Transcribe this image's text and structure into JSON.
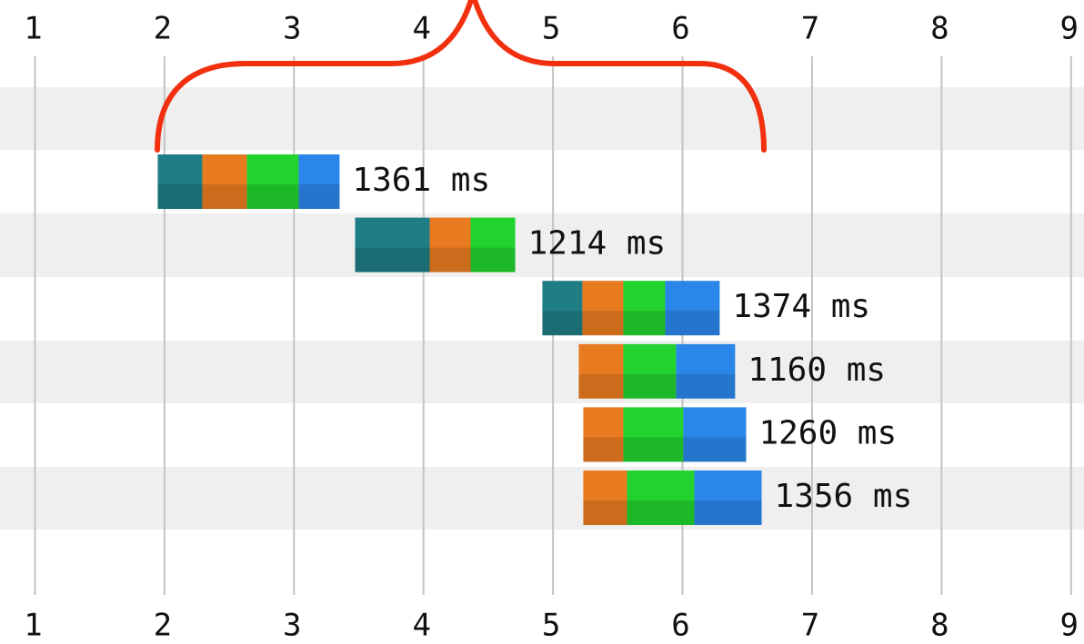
{
  "chart_data": {
    "type": "waterfall",
    "xlim": [
      0.73,
      9.1
    ],
    "xticks": [
      1,
      2,
      3,
      4,
      5,
      6,
      7,
      8,
      9
    ],
    "grid": true,
    "start": [
      1.948,
      3.472,
      4.918,
      5.199,
      5.234,
      5.234
    ],
    "series": [
      {
        "color": "#1f7d85",
        "values": [
          0.344,
          0.576,
          0.309,
          null,
          null,
          null
        ]
      },
      {
        "color": "#e87a20",
        "values": [
          0.344,
          0.316,
          0.316,
          0.344,
          0.309,
          0.337
        ]
      },
      {
        "color": "#22d22e",
        "values": [
          0.4,
          0.344,
          0.323,
          0.407,
          0.463,
          0.52
        ]
      },
      {
        "color": "#2a86e8",
        "values": [
          0.316,
          null,
          0.421,
          0.456,
          0.485,
          0.52
        ]
      }
    ],
    "duration_labels": [
      "1361 ms",
      "1214 ms",
      "1374 ms",
      "1160 ms",
      "1260 ms",
      "1356 ms"
    ]
  }
}
